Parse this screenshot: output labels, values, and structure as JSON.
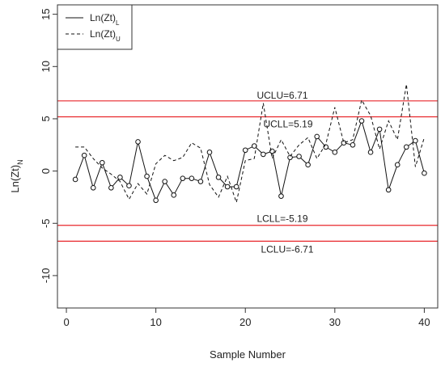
{
  "chart_data": {
    "type": "line",
    "xlabel": "Sample Number",
    "ylabel": "Ln(Zt)",
    "ylabel_sub": "N",
    "xlim": [
      -1,
      41.5
    ],
    "ylim": [
      -13.1,
      15.9
    ],
    "x_ticks": [
      0,
      10,
      20,
      30,
      40
    ],
    "y_ticks": [
      -10,
      -5,
      0,
      5,
      10,
      15
    ],
    "x_tick_labels": [
      "0",
      "10",
      "20",
      "30",
      "40"
    ],
    "y_tick_labels": [
      "-10",
      "-5",
      "0",
      "5",
      "10",
      "15"
    ],
    "grid": false,
    "legend_position": "top-left",
    "x": [
      1,
      2,
      3,
      4,
      5,
      6,
      7,
      8,
      9,
      10,
      11,
      12,
      13,
      14,
      15,
      16,
      17,
      18,
      19,
      20,
      21,
      22,
      23,
      24,
      25,
      26,
      27,
      28,
      29,
      30,
      31,
      32,
      33,
      34,
      35,
      36,
      37,
      38,
      39,
      40
    ],
    "series": [
      {
        "name": "Ln(Zt)",
        "name_sub": "L",
        "style": "solid",
        "marker": "circle",
        "values": [
          -0.8,
          1.5,
          -1.6,
          0.8,
          -1.6,
          -0.6,
          -1.4,
          2.8,
          -0.5,
          -2.8,
          -1.0,
          -2.3,
          -0.7,
          -0.7,
          -1.0,
          1.8,
          -0.6,
          -1.5,
          -1.5,
          2.0,
          2.4,
          1.6,
          1.9,
          -2.4,
          1.3,
          1.4,
          0.6,
          3.3,
          2.3,
          1.8,
          2.7,
          2.5,
          4.8,
          1.8,
          4.0,
          -1.8,
          0.6,
          2.3,
          2.9,
          -0.2
        ]
      },
      {
        "name": "Ln(Zt)",
        "name_sub": "U",
        "style": "dashed",
        "values": [
          2.3,
          2.3,
          1.2,
          0.3,
          -0.3,
          -1.0,
          -2.7,
          -1.2,
          -2.2,
          0.7,
          1.5,
          1.0,
          1.3,
          2.7,
          2.2,
          -1.3,
          -2.5,
          -0.5,
          -3.0,
          1.0,
          1.2,
          6.5,
          1.2,
          3.0,
          1.4,
          2.5,
          3.2,
          1.2,
          2.6,
          6.1,
          2.7,
          3.0,
          6.8,
          5.3,
          2.1,
          4.8,
          3.0,
          8.3,
          0.4,
          3.2
        ]
      }
    ],
    "control_lines": [
      {
        "label": "UCLU=6.71",
        "value": 6.71,
        "color": "#e8272b"
      },
      {
        "label": "UCLL=5.19",
        "value": 5.19,
        "color": "#e8272b"
      },
      {
        "label": "LCLL=-5.19",
        "value": -5.19,
        "color": "#e8272b"
      },
      {
        "label": "LCLU=-6.71",
        "value": -6.71,
        "color": "#e8272b"
      }
    ]
  }
}
